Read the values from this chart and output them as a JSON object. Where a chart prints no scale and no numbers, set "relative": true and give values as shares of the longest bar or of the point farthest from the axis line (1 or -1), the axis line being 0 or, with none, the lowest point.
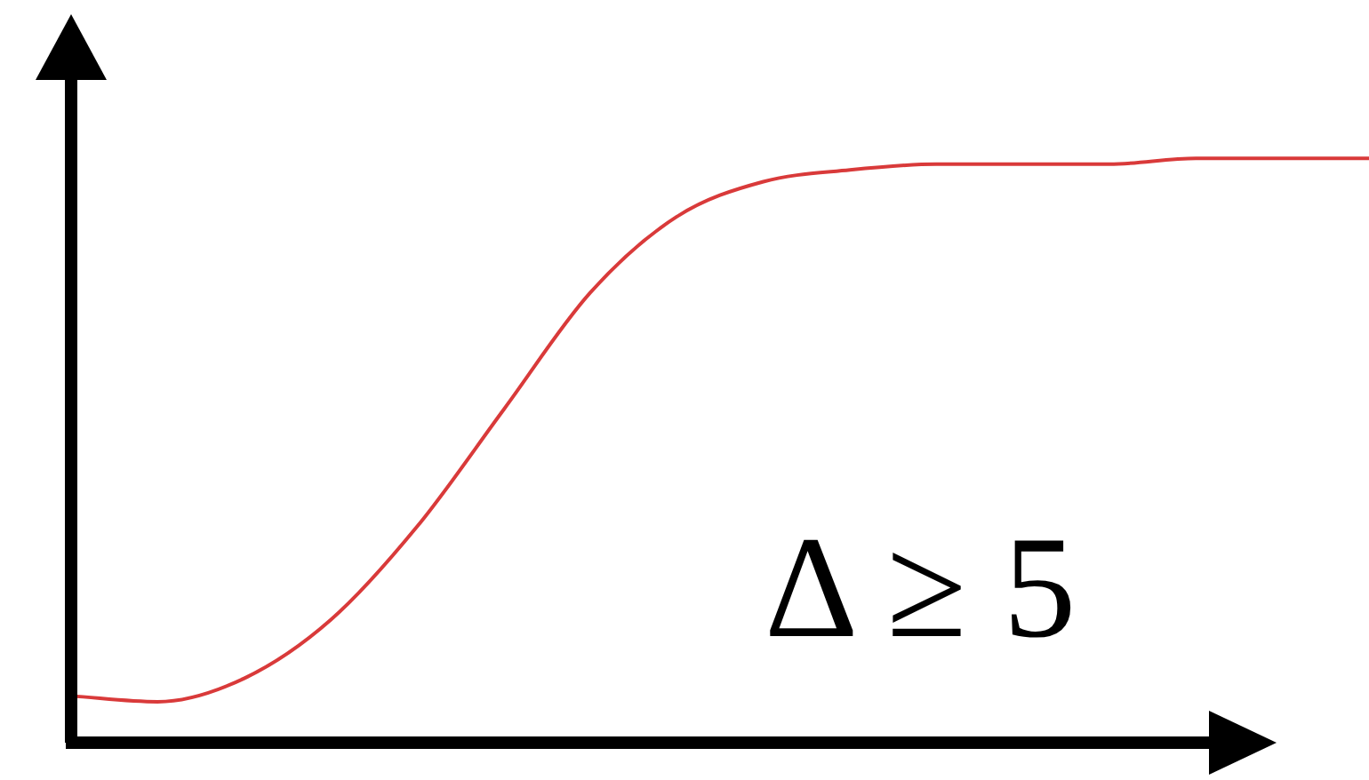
{
  "chart_data": {
    "type": "line",
    "relative": true,
    "categories": [
      null,
      null,
      null,
      null,
      null,
      null,
      null,
      null,
      null,
      null,
      null,
      null,
      null,
      null,
      null,
      null
    ],
    "series": [
      {
        "color": "#d93a3a",
        "values": [
          0.08,
          0.07,
          0.11,
          0.21,
          0.37,
          0.57,
          0.77,
          0.9,
          0.96,
          0.98,
          0.99,
          0.99,
          0.99,
          1.0,
          1.0,
          1.0
        ]
      }
    ],
    "annotations": [
      "Δ ≥ 5"
    ],
    "marker": "none",
    "line_style": "solid",
    "legend": false
  }
}
